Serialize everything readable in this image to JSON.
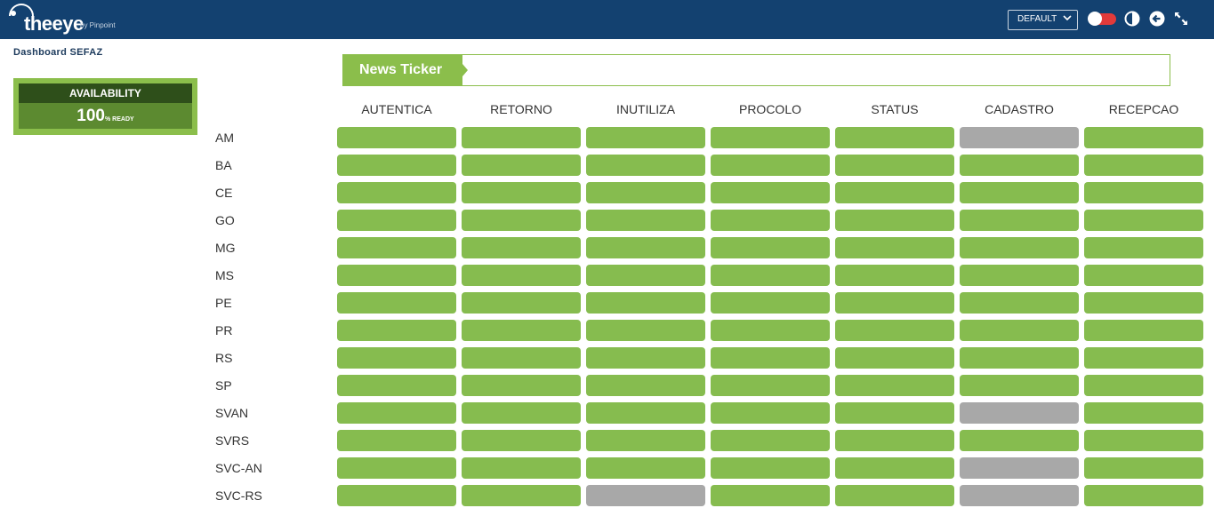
{
  "brand": {
    "name": "theeye",
    "tagline": "by Pinpoint"
  },
  "toolbar": {
    "view_select": "DEFAULT"
  },
  "dashboard": {
    "title": "Dashboard SEFAZ"
  },
  "availability": {
    "label": "AVAILABILITY",
    "value": "100",
    "unit": "% READY"
  },
  "ticker": {
    "label": "News Ticker"
  },
  "colors": {
    "ok": "#86bc4f",
    "off": "#a8a8a8",
    "header": "#134170"
  },
  "columns": [
    "AUTENTICA",
    "RETORNO",
    "INUTILIZA",
    "PROCOLO",
    "STATUS",
    "CADASTRO",
    "RECEPCAO"
  ],
  "rows": [
    {
      "label": "AM",
      "status": [
        "ok",
        "ok",
        "ok",
        "ok",
        "ok",
        "off",
        "ok"
      ]
    },
    {
      "label": "BA",
      "status": [
        "ok",
        "ok",
        "ok",
        "ok",
        "ok",
        "ok",
        "ok"
      ]
    },
    {
      "label": "CE",
      "status": [
        "ok",
        "ok",
        "ok",
        "ok",
        "ok",
        "ok",
        "ok"
      ]
    },
    {
      "label": "GO",
      "status": [
        "ok",
        "ok",
        "ok",
        "ok",
        "ok",
        "ok",
        "ok"
      ]
    },
    {
      "label": "MG",
      "status": [
        "ok",
        "ok",
        "ok",
        "ok",
        "ok",
        "ok",
        "ok"
      ]
    },
    {
      "label": "MS",
      "status": [
        "ok",
        "ok",
        "ok",
        "ok",
        "ok",
        "ok",
        "ok"
      ]
    },
    {
      "label": "PE",
      "status": [
        "ok",
        "ok",
        "ok",
        "ok",
        "ok",
        "ok",
        "ok"
      ]
    },
    {
      "label": "PR",
      "status": [
        "ok",
        "ok",
        "ok",
        "ok",
        "ok",
        "ok",
        "ok"
      ]
    },
    {
      "label": "RS",
      "status": [
        "ok",
        "ok",
        "ok",
        "ok",
        "ok",
        "ok",
        "ok"
      ]
    },
    {
      "label": "SP",
      "status": [
        "ok",
        "ok",
        "ok",
        "ok",
        "ok",
        "ok",
        "ok"
      ]
    },
    {
      "label": "SVAN",
      "status": [
        "ok",
        "ok",
        "ok",
        "ok",
        "ok",
        "off",
        "ok"
      ]
    },
    {
      "label": "SVRS",
      "status": [
        "ok",
        "ok",
        "ok",
        "ok",
        "ok",
        "ok",
        "ok"
      ]
    },
    {
      "label": "SVC-AN",
      "status": [
        "ok",
        "ok",
        "ok",
        "ok",
        "ok",
        "off",
        "ok"
      ]
    },
    {
      "label": "SVC-RS",
      "status": [
        "ok",
        "ok",
        "off",
        "ok",
        "ok",
        "off",
        "ok"
      ]
    }
  ]
}
